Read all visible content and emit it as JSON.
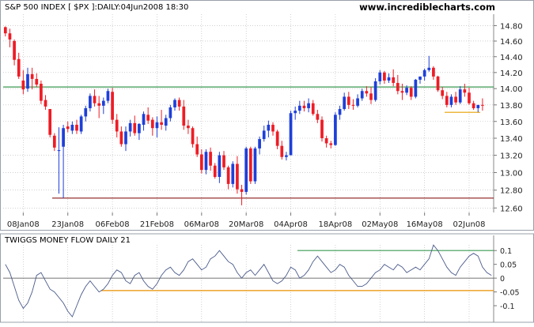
{
  "chart_data": [
    {
      "type": "candlestick",
      "title": "S&P 500 INDEX [ $PX ]:DAILY:04Jun2008 18:30",
      "watermark": "www.incrediblecharts.com",
      "ylim": [
        12.55,
        14.95
      ],
      "y_scale": "log",
      "y_ticks": [
        12.6,
        12.8,
        13.0,
        13.2,
        13.4,
        13.6,
        13.8,
        14.0,
        14.2,
        14.4,
        14.6,
        14.8
      ],
      "y_tick_labels": [
        "12.60",
        "12.80",
        "13.00",
        "13.20",
        "13.40",
        "13.60",
        "13.80",
        "14.00",
        "14.20",
        "14.40",
        "14.60",
        "14.80"
      ],
      "x_tick_labels": [
        "08Jan08",
        "23Jan08",
        "06Feb08",
        "21Feb08",
        "06Mar08",
        "20Mar08",
        "04Apr08",
        "18Apr08",
        "02May08",
        "16May08",
        "02Jun08"
      ],
      "x_tick_index": [
        4,
        14,
        24,
        34,
        44,
        54,
        64,
        74,
        84,
        94,
        104
      ],
      "colors": {
        "up": "#1e3fd8",
        "down": "#ee1c25",
        "grid": "#b4b4b4",
        "resistance": "#3a9a50",
        "support": "#8b1a1a",
        "short_support": "#e8a000"
      },
      "lines": [
        {
          "y": 14.02,
          "from": 0,
          "to": 109,
          "color": "resistance"
        },
        {
          "y": 12.71,
          "from": 11,
          "to": 109,
          "color": "support"
        },
        {
          "y": 13.71,
          "from": 99,
          "to": 106,
          "color": "short_support"
        }
      ],
      "ohlc": [
        [
          14.78,
          14.79,
          14.66,
          14.7
        ],
        [
          14.7,
          14.76,
          14.52,
          14.62
        ],
        [
          14.6,
          14.62,
          14.29,
          14.36
        ],
        [
          14.37,
          14.45,
          14.12,
          14.15
        ],
        [
          14.1,
          14.23,
          13.93,
          13.99
        ],
        [
          14.0,
          14.26,
          13.96,
          14.18
        ],
        [
          14.18,
          14.26,
          13.99,
          14.12
        ],
        [
          14.12,
          14.19,
          14.02,
          14.05
        ],
        [
          14.06,
          14.1,
          13.81,
          13.85
        ],
        [
          13.86,
          13.92,
          13.74,
          13.78
        ],
        [
          13.75,
          13.75,
          13.41,
          13.44
        ],
        [
          13.43,
          13.46,
          13.25,
          13.29
        ],
        [
          13.25,
          13.53,
          12.76,
          13.26
        ],
        [
          13.3,
          13.56,
          12.71,
          13.52
        ],
        [
          13.54,
          13.6,
          13.47,
          13.51
        ],
        [
          13.49,
          13.6,
          13.45,
          13.56
        ],
        [
          13.56,
          13.62,
          13.45,
          13.49
        ],
        [
          13.48,
          13.68,
          13.45,
          13.66
        ],
        [
          13.66,
          13.79,
          13.6,
          13.76
        ],
        [
          13.76,
          13.94,
          13.72,
          13.91
        ],
        [
          13.91,
          13.99,
          13.78,
          13.82
        ],
        [
          13.82,
          13.91,
          13.64,
          13.79
        ],
        [
          13.79,
          13.89,
          13.69,
          13.85
        ],
        [
          13.85,
          14.0,
          13.82,
          13.97
        ],
        [
          13.96,
          14.01,
          13.57,
          13.62
        ],
        [
          13.62,
          13.69,
          13.41,
          13.48
        ],
        [
          13.48,
          13.54,
          13.3,
          13.33
        ],
        [
          13.33,
          13.54,
          13.25,
          13.48
        ],
        [
          13.48,
          13.62,
          13.42,
          13.58
        ],
        [
          13.58,
          13.67,
          13.43,
          13.46
        ],
        [
          13.46,
          13.58,
          13.38,
          13.57
        ],
        [
          13.56,
          13.72,
          13.49,
          13.69
        ],
        [
          13.68,
          13.77,
          13.57,
          13.61
        ],
        [
          13.62,
          13.65,
          13.43,
          13.52
        ],
        [
          13.52,
          13.66,
          13.41,
          13.59
        ],
        [
          13.59,
          13.74,
          13.5,
          13.56
        ],
        [
          13.55,
          13.68,
          13.49,
          13.64
        ],
        [
          13.64,
          13.8,
          13.6,
          13.77
        ],
        [
          13.77,
          13.88,
          13.73,
          13.86
        ],
        [
          13.86,
          13.89,
          13.73,
          13.78
        ],
        [
          13.78,
          13.86,
          13.5,
          13.55
        ],
        [
          13.55,
          13.62,
          13.45,
          13.52
        ],
        [
          13.52,
          13.54,
          13.29,
          13.33
        ],
        [
          13.33,
          13.42,
          13.18,
          13.21
        ],
        [
          13.21,
          13.27,
          12.99,
          13.03
        ],
        [
          13.03,
          13.27,
          12.98,
          13.24
        ],
        [
          13.24,
          13.29,
          13.02,
          13.08
        ],
        [
          13.08,
          13.11,
          12.93,
          12.95
        ],
        [
          12.95,
          13.24,
          12.88,
          13.2
        ],
        [
          13.2,
          13.25,
          13.03,
          13.06
        ],
        [
          13.06,
          13.08,
          12.81,
          12.87
        ],
        [
          12.87,
          13.13,
          12.83,
          13.1
        ],
        [
          13.1,
          13.19,
          12.76,
          12.81
        ],
        [
          12.81,
          12.86,
          12.63,
          12.78
        ],
        [
          12.78,
          13.3,
          12.75,
          13.28
        ],
        [
          13.28,
          13.3,
          12.87,
          12.9
        ],
        [
          12.9,
          13.3,
          12.87,
          13.28
        ],
        [
          13.28,
          13.42,
          13.21,
          13.39
        ],
        [
          13.39,
          13.55,
          13.36,
          13.49
        ],
        [
          13.49,
          13.61,
          13.41,
          13.56
        ],
        [
          13.56,
          13.59,
          13.43,
          13.48
        ],
        [
          13.48,
          13.5,
          13.27,
          13.31
        ],
        [
          13.31,
          13.37,
          13.15,
          13.18
        ],
        [
          13.18,
          13.24,
          13.14,
          13.2
        ],
        [
          13.2,
          13.73,
          13.2,
          13.7
        ],
        [
          13.7,
          13.78,
          13.62,
          13.73
        ],
        [
          13.73,
          13.85,
          13.69,
          13.79
        ],
        [
          13.79,
          13.85,
          13.72,
          13.76
        ],
        [
          13.76,
          13.88,
          13.71,
          13.82
        ],
        [
          13.82,
          13.86,
          13.67,
          13.69
        ],
        [
          13.69,
          13.74,
          13.58,
          13.62
        ],
        [
          13.62,
          13.66,
          13.36,
          13.4
        ],
        [
          13.4,
          13.43,
          13.29,
          13.34
        ],
        [
          13.34,
          13.37,
          13.28,
          13.32
        ],
        [
          13.32,
          13.71,
          13.31,
          13.68
        ],
        [
          13.68,
          13.79,
          13.62,
          13.75
        ],
        [
          13.75,
          13.95,
          13.73,
          13.9
        ],
        [
          13.9,
          13.96,
          13.75,
          13.8
        ],
        [
          13.8,
          13.87,
          13.74,
          13.79
        ],
        [
          13.79,
          13.93,
          13.77,
          13.88
        ],
        [
          13.88,
          14.0,
          13.85,
          13.97
        ],
        [
          13.97,
          14.03,
          13.9,
          13.94
        ],
        [
          13.94,
          14.02,
          13.81,
          13.86
        ],
        [
          13.86,
          14.13,
          13.84,
          14.09
        ],
        [
          14.09,
          14.23,
          14.05,
          14.2
        ],
        [
          14.2,
          14.22,
          14.06,
          14.1
        ],
        [
          14.1,
          14.19,
          14.07,
          14.14
        ],
        [
          14.14,
          14.24,
          14.03,
          14.07
        ],
        [
          14.07,
          14.17,
          13.93,
          13.97
        ],
        [
          13.97,
          14.06,
          13.86,
          13.95
        ],
        [
          13.95,
          14.04,
          13.92,
          14.01
        ],
        [
          14.01,
          14.03,
          13.86,
          13.9
        ],
        [
          13.9,
          14.12,
          13.88,
          14.11
        ],
        [
          14.11,
          14.15,
          14.06,
          14.15
        ],
        [
          14.15,
          14.25,
          14.1,
          14.23
        ],
        [
          14.23,
          14.41,
          14.21,
          14.26
        ],
        [
          14.26,
          14.28,
          14.11,
          14.15
        ],
        [
          14.15,
          14.16,
          13.96,
          13.98
        ],
        [
          13.98,
          14.02,
          13.87,
          13.91
        ],
        [
          13.91,
          13.96,
          13.77,
          13.8
        ],
        [
          13.8,
          13.93,
          13.77,
          13.9
        ],
        [
          13.9,
          13.96,
          13.8,
          13.83
        ],
        [
          13.83,
          14.03,
          13.81,
          13.99
        ],
        [
          13.99,
          14.06,
          13.9,
          13.95
        ],
        [
          13.95,
          14.01,
          13.8,
          13.82
        ],
        [
          13.82,
          13.85,
          13.74,
          13.76
        ],
        [
          13.76,
          13.79,
          13.71,
          13.8
        ],
        [
          13.8,
          13.88,
          13.73,
          13.79
        ]
      ]
    },
    {
      "type": "line",
      "title": "TWIGGS MONEY FLOW DAILY 21",
      "ylim": [
        -0.16,
        0.155
      ],
      "y_ticks": [
        -0.1,
        -0.05,
        0,
        0.05,
        0.1
      ],
      "y_tick_labels": [
        "-0.1",
        "-0.05",
        "0",
        "0.05",
        "0.1"
      ],
      "colors": {
        "line": "#4a5a8a",
        "upper": "#3a9a50",
        "zero": "#444444",
        "lower": "#e89000"
      },
      "lines": [
        {
          "y": 0.1,
          "from": 66,
          "to": 109,
          "color": "upper"
        },
        {
          "y": 0,
          "from": 0,
          "to": 109,
          "color": "zero"
        },
        {
          "y": -0.045,
          "from": 22,
          "to": 109,
          "color": "lower"
        }
      ],
      "values": [
        0.05,
        0.02,
        -0.03,
        -0.08,
        -0.11,
        -0.09,
        -0.05,
        0.01,
        0.02,
        -0.01,
        -0.04,
        -0.05,
        -0.07,
        -0.09,
        -0.12,
        -0.14,
        -0.1,
        -0.06,
        -0.03,
        -0.01,
        -0.03,
        -0.05,
        -0.04,
        -0.02,
        0.01,
        0.03,
        0.02,
        -0.01,
        -0.02,
        0.01,
        0.02,
        -0.01,
        -0.03,
        -0.04,
        -0.02,
        0.01,
        0.03,
        0.04,
        0.02,
        0.01,
        0.03,
        0.06,
        0.07,
        0.05,
        0.03,
        0.04,
        0.07,
        0.08,
        0.1,
        0.08,
        0.06,
        0.05,
        0.02,
        0.0,
        0.02,
        0.03,
        0.01,
        0.03,
        0.05,
        0.02,
        -0.01,
        -0.02,
        -0.01,
        0.01,
        0.04,
        0.03,
        0.0,
        0.01,
        0.03,
        0.06,
        0.08,
        0.06,
        0.04,
        0.02,
        0.03,
        0.05,
        0.04,
        0.01,
        -0.01,
        -0.03,
        -0.03,
        -0.02,
        0.0,
        0.02,
        0.03,
        0.05,
        0.04,
        0.03,
        0.05,
        0.04,
        0.02,
        0.03,
        0.04,
        0.03,
        0.05,
        0.07,
        0.12,
        0.1,
        0.07,
        0.04,
        0.02,
        0.01,
        0.04,
        0.06,
        0.08,
        0.09,
        0.08,
        0.04,
        0.02,
        0.01
      ]
    }
  ]
}
